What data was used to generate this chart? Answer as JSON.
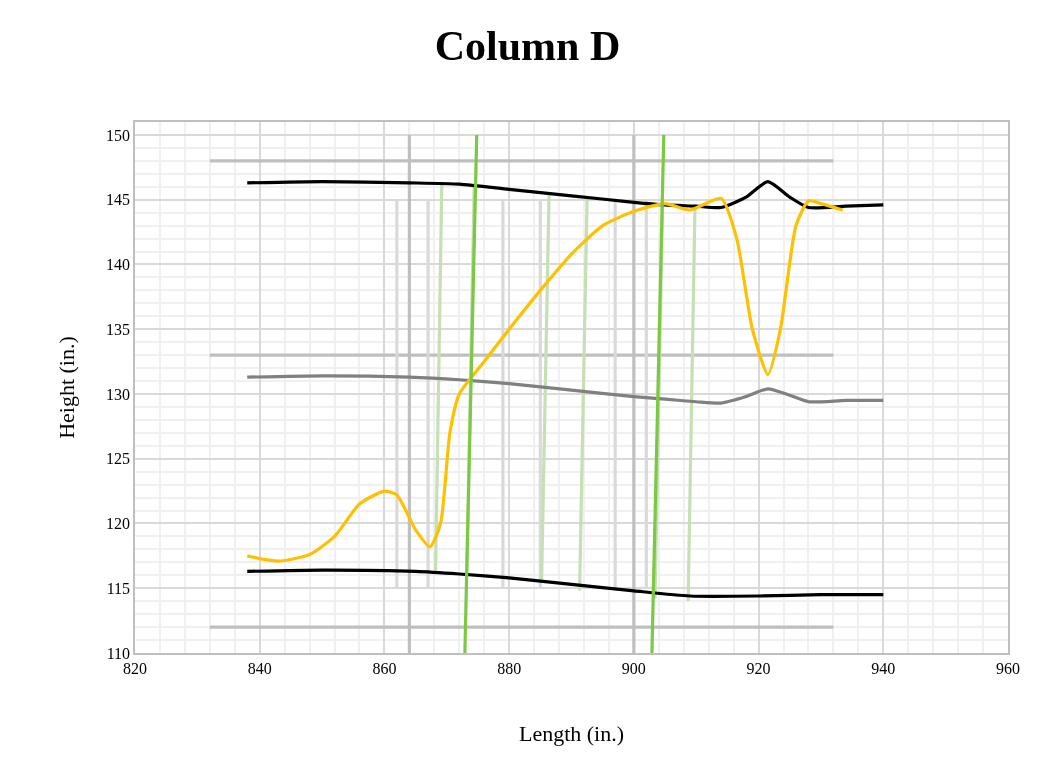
{
  "chart_data": {
    "type": "line",
    "title": "Column D",
    "xlabel": "Length (in.)",
    "ylabel": "Height (in.)",
    "xlim": [
      820,
      960
    ],
    "xticks": [
      820,
      840,
      860,
      880,
      900,
      920,
      940,
      960
    ],
    "ylim": [
      110,
      151
    ],
    "yticks": [
      110,
      115,
      120,
      125,
      130,
      135,
      140,
      145,
      150
    ],
    "grid": true,
    "marker": "none",
    "line_style": "solid",
    "series": [
      {
        "color": "#bfbfbf",
        "x": [
          832,
          932
        ],
        "values": [
          148,
          148
        ]
      },
      {
        "color": "#bfbfbf",
        "x": [
          832,
          932
        ],
        "values": [
          133,
          133
        ]
      },
      {
        "color": "#bfbfbf",
        "x": [
          832,
          932
        ],
        "values": [
          112,
          112
        ]
      },
      {
        "color": "#bfbfbf",
        "x": [
          864,
          864
        ],
        "values": [
          110,
          150
        ]
      },
      {
        "color": "#bfbfbf",
        "x": [
          900,
          900
        ],
        "values": [
          110,
          150
        ]
      },
      {
        "color": "#d9d9d9",
        "x": [
          862,
          862
        ],
        "values": [
          115,
          145
        ]
      },
      {
        "color": "#d9d9d9",
        "x": [
          867,
          867
        ],
        "values": [
          115,
          145
        ]
      },
      {
        "color": "#d9d9d9",
        "x": [
          879,
          879
        ],
        "values": [
          115,
          145
        ]
      },
      {
        "color": "#d9d9d9",
        "x": [
          885,
          885
        ],
        "values": [
          115,
          145
        ]
      },
      {
        "color": "#d9d9d9",
        "x": [
          897,
          897
        ],
        "values": [
          115,
          145
        ]
      },
      {
        "color": "#d9d9d9",
        "x": [
          902,
          902
        ],
        "values": [
          115,
          145
        ]
      },
      {
        "color": "#c5e0b4",
        "x": [
          868.2,
          869.2
        ],
        "values": [
          116.2,
          146.3
        ]
      },
      {
        "color": "#c5e0b4",
        "x": [
          873.2,
          874.4
        ],
        "values": [
          116.0,
          146.1
        ]
      },
      {
        "color": "#c5e0b4",
        "x": [
          885.2,
          886.4
        ],
        "values": [
          115.4,
          145.5
        ]
      },
      {
        "color": "#c5e0b4",
        "x": [
          891.3,
          892.5
        ],
        "values": [
          114.8,
          145.2
        ]
      },
      {
        "color": "#c5e0b4",
        "x": [
          903.4,
          904.6
        ],
        "values": [
          114.2,
          144.6
        ]
      },
      {
        "color": "#c5e0b4",
        "x": [
          908.7,
          909.8
        ],
        "values": [
          114.0,
          144.5
        ]
      },
      {
        "color": "#000000",
        "x": [
          838,
          850,
          864,
          872,
          880,
          890,
          900,
          905,
          910,
          914,
          918,
          921.5,
          925,
          928,
          934,
          940
        ],
        "values": [
          146.3,
          146.4,
          146.3,
          146.2,
          145.8,
          145.3,
          144.8,
          144.6,
          144.5,
          144.4,
          145.2,
          146.4,
          145.2,
          144.4,
          144.5,
          144.6
        ]
      },
      {
        "color": "#808080",
        "x": [
          838,
          850,
          864,
          872,
          880,
          890,
          900,
          905,
          910,
          914,
          918,
          921.5,
          925,
          928,
          934,
          940
        ],
        "values": [
          131.3,
          131.4,
          131.3,
          131.1,
          130.8,
          130.3,
          129.8,
          129.6,
          129.4,
          129.3,
          129.8,
          130.4,
          129.9,
          129.4,
          129.5,
          129.5
        ]
      },
      {
        "color": "#000000",
        "x": [
          838,
          850,
          865,
          872,
          880,
          890,
          900,
          909,
          920,
          930,
          940
        ],
        "values": [
          116.3,
          116.4,
          116.3,
          116.1,
          115.8,
          115.3,
          114.8,
          114.4,
          114.4,
          114.5,
          114.5
        ]
      },
      {
        "color": "#ffc000",
        "x": [
          838,
          843,
          848,
          852,
          856,
          860,
          862,
          865,
          867.3,
          869,
          870.5,
          872,
          876,
          880,
          885,
          890,
          895,
          900,
          905,
          909,
          914,
          916.5,
          919,
          921.5,
          923.5,
          926,
          928,
          930,
          933.5
        ],
        "values": [
          117.5,
          117.1,
          117.6,
          119.0,
          121.5,
          122.5,
          122.2,
          119.5,
          118.2,
          120.0,
          127.0,
          130.0,
          132.5,
          135.0,
          138.0,
          140.8,
          143.0,
          144.1,
          144.7,
          144.2,
          145.1,
          142.0,
          135.0,
          131.5,
          135.0,
          143.0,
          144.9,
          144.7,
          144.2
        ]
      },
      {
        "color": "#7cc843",
        "x": [
          872.9,
          874.8
        ],
        "values": [
          110,
          150
        ]
      },
      {
        "color": "#7cc843",
        "x": [
          902.9,
          904.8
        ],
        "values": [
          110,
          150
        ]
      }
    ]
  }
}
